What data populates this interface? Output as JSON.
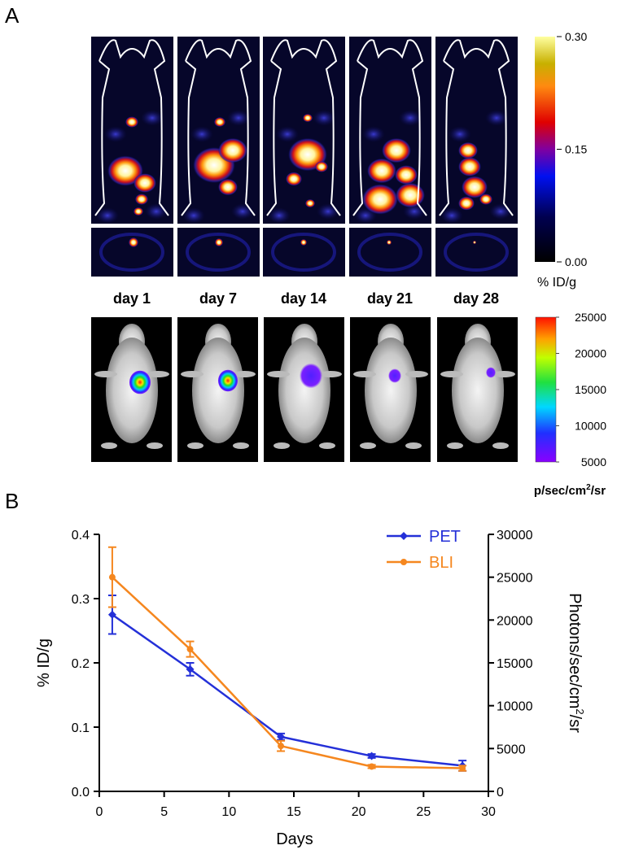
{
  "panel_labels": [
    "A",
    "B"
  ],
  "pet_days": [
    "day 1",
    "day 7",
    "day 14",
    "day 21",
    "day 28"
  ],
  "pet_colorbar": {
    "ticks": [
      {
        "value": 0.3,
        "label": "0.30"
      },
      {
        "value": 0.15,
        "label": "0.15"
      },
      {
        "value": 0.0,
        "label": "0.00"
      }
    ],
    "label": "% ID/g"
  },
  "bli_colorbar": {
    "ticks": [
      25000,
      20000,
      15000,
      10000,
      5000
    ],
    "label_parts": [
      "p/sec/cm",
      "2",
      "/sr"
    ]
  },
  "chart_data": {
    "type": "line",
    "xlabel": "Days",
    "ylabel": "% ID/g",
    "y2label_parts": [
      "Photons/sec/cm",
      "2",
      "/sr"
    ],
    "x": [
      1,
      7,
      14,
      21,
      28
    ],
    "series": [
      {
        "name": "PET",
        "color": "#2430d8",
        "marker": "diamond",
        "values": [
          0.275,
          0.19,
          0.085,
          0.055,
          0.04
        ],
        "errors": [
          0.03,
          0.01,
          0.005,
          0.003,
          0.008
        ]
      },
      {
        "name": "BLI",
        "color": "#f5871f",
        "marker": "circle",
        "axis": "y2",
        "values": [
          25000,
          16600,
          5300,
          2900,
          2700
        ],
        "errors": [
          3500,
          900,
          600,
          200,
          300
        ]
      }
    ],
    "xlim": [
      0,
      30
    ],
    "xticks": [
      0,
      5,
      10,
      15,
      20,
      25,
      30
    ],
    "ylim": [
      0,
      0.4
    ],
    "yticks": [
      {
        "value": 0,
        "label": "0.0"
      },
      0.1,
      0.2,
      0.3,
      0.4
    ],
    "y2lim": [
      0,
      30000
    ],
    "y2ticks": [
      0,
      5000,
      10000,
      15000,
      20000,
      25000,
      30000
    ],
    "legend": "upper right"
  }
}
